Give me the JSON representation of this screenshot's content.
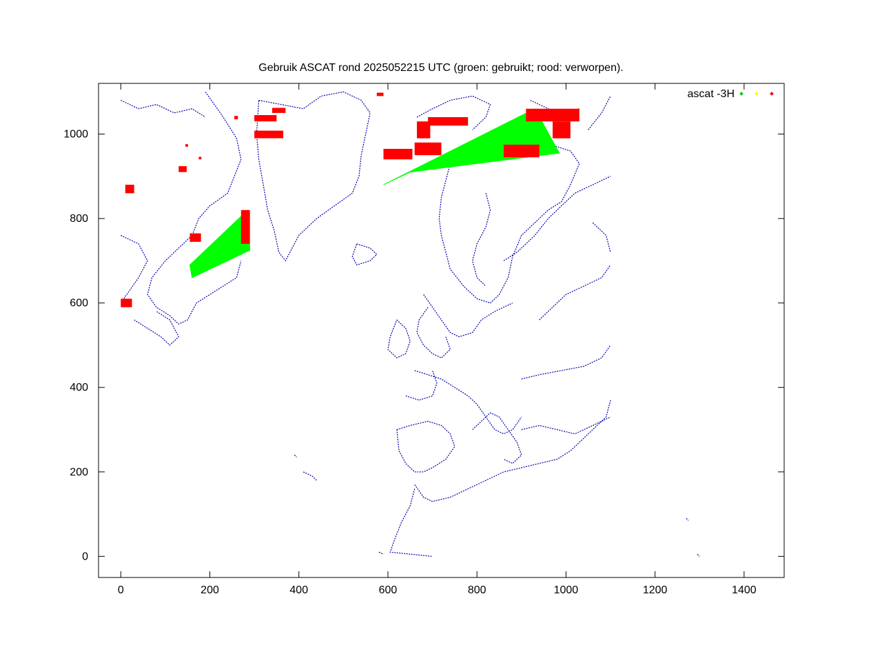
{
  "chart_data": {
    "type": "scatter",
    "title": "Gebruik ASCAT rond 2025052215 UTC (groen: gebruikt; rood: verworpen).",
    "xlabel": "",
    "ylabel": "",
    "xlim": [
      -50,
      1490
    ],
    "ylim": [
      -50,
      1120
    ],
    "x_ticks": [
      0,
      200,
      400,
      600,
      800,
      1000,
      1200,
      1400
    ],
    "y_ticks": [
      0,
      200,
      400,
      600,
      800,
      1000
    ],
    "grid": false,
    "legend": {
      "placement": "top-right",
      "title": "ascat -3H",
      "entries": [
        {
          "color": "#00cc00"
        },
        {
          "color": "#ffff00"
        },
        {
          "color": "#ff0000"
        }
      ]
    },
    "colors": {
      "used": "#00ff00",
      "rejected": "#ff0000",
      "coast": "#0000aa",
      "frame": "#000000"
    },
    "series": [
      {
        "status": "used",
        "color": "#00ff00",
        "swaths": [
          {
            "polygon": [
              [
                155,
                690
              ],
              [
                285,
                820
              ],
              [
                290,
                725
              ],
              [
                160,
                660
              ]
            ]
          },
          {
            "polygon": [
              [
                590,
                880
              ],
              [
                930,
                1060
              ],
              [
                985,
                955
              ],
              [
                650,
                910
              ]
            ]
          }
        ]
      },
      {
        "status": "rejected",
        "color": "#ff0000",
        "clusters": [
          {
            "x": 300,
            "y": 1030,
            "w": 50,
            "h": 15
          },
          {
            "x": 340,
            "y": 1050,
            "w": 30,
            "h": 12
          },
          {
            "x": 300,
            "y": 990,
            "w": 65,
            "h": 18
          },
          {
            "x": 255,
            "y": 1035,
            "w": 8,
            "h": 8
          },
          {
            "x": 130,
            "y": 910,
            "w": 18,
            "h": 14
          },
          {
            "x": 145,
            "y": 970,
            "w": 6,
            "h": 6
          },
          {
            "x": 175,
            "y": 940,
            "w": 6,
            "h": 6
          },
          {
            "x": 10,
            "y": 860,
            "w": 20,
            "h": 20
          },
          {
            "x": 0,
            "y": 590,
            "w": 25,
            "h": 20
          },
          {
            "x": 155,
            "y": 745,
            "w": 25,
            "h": 20
          },
          {
            "x": 270,
            "y": 740,
            "w": 20,
            "h": 80
          },
          {
            "x": 590,
            "y": 940,
            "w": 65,
            "h": 25
          },
          {
            "x": 665,
            "y": 990,
            "w": 30,
            "h": 40
          },
          {
            "x": 690,
            "y": 1020,
            "w": 90,
            "h": 20
          },
          {
            "x": 660,
            "y": 950,
            "w": 60,
            "h": 30
          },
          {
            "x": 860,
            "y": 945,
            "w": 80,
            "h": 30
          },
          {
            "x": 910,
            "y": 1030,
            "w": 120,
            "h": 30
          },
          {
            "x": 970,
            "y": 990,
            "w": 40,
            "h": 40
          },
          {
            "x": 575,
            "y": 1090,
            "w": 15,
            "h": 8
          }
        ]
      }
    ],
    "coastlines": [
      [
        [
          190,
          1100
        ],
        [
          210,
          1070
        ],
        [
          230,
          1040
        ],
        [
          260,
          990
        ],
        [
          270,
          940
        ],
        [
          255,
          900
        ],
        [
          240,
          860
        ],
        [
          200,
          830
        ],
        [
          175,
          800
        ],
        [
          160,
          760
        ],
        [
          130,
          730
        ],
        [
          100,
          700
        ],
        [
          70,
          660
        ],
        [
          60,
          620
        ],
        [
          80,
          590
        ],
        [
          110,
          570
        ],
        [
          130,
          550
        ],
        [
          150,
          560
        ],
        [
          170,
          600
        ],
        [
          200,
          620
        ],
        [
          230,
          640
        ],
        [
          260,
          660
        ],
        [
          270,
          700
        ]
      ],
      [
        [
          0,
          1080
        ],
        [
          40,
          1060
        ],
        [
          80,
          1070
        ],
        [
          120,
          1050
        ],
        [
          160,
          1060
        ],
        [
          190,
          1040
        ]
      ],
      [
        [
          0,
          760
        ],
        [
          40,
          740
        ],
        [
          60,
          700
        ],
        [
          40,
          660
        ],
        [
          20,
          630
        ],
        [
          0,
          600
        ]
      ],
      [
        [
          30,
          560
        ],
        [
          60,
          540
        ],
        [
          90,
          520
        ],
        [
          110,
          500
        ],
        [
          130,
          520
        ],
        [
          110,
          560
        ],
        [
          80,
          580
        ]
      ],
      [
        [
          310,
          1080
        ],
        [
          360,
          1070
        ],
        [
          410,
          1060
        ],
        [
          450,
          1090
        ],
        [
          500,
          1100
        ],
        [
          540,
          1080
        ],
        [
          560,
          1050
        ],
        [
          550,
          1000
        ],
        [
          540,
          950
        ],
        [
          535,
          900
        ],
        [
          520,
          860
        ],
        [
          480,
          830
        ],
        [
          440,
          800
        ],
        [
          400,
          760
        ],
        [
          380,
          720
        ],
        [
          370,
          700
        ],
        [
          355,
          720
        ],
        [
          345,
          770
        ],
        [
          330,
          820
        ],
        [
          320,
          880
        ],
        [
          310,
          940
        ],
        [
          305,
          1000
        ],
        [
          310,
          1080
        ]
      ],
      [
        [
          530,
          740
        ],
        [
          560,
          730
        ],
        [
          575,
          715
        ],
        [
          560,
          700
        ],
        [
          530,
          690
        ],
        [
          520,
          710
        ],
        [
          530,
          740
        ]
      ],
      [
        [
          665,
          1040
        ],
        [
          700,
          1060
        ],
        [
          740,
          1080
        ],
        [
          790,
          1090
        ],
        [
          830,
          1070
        ],
        [
          820,
          1040
        ],
        [
          790,
          1010
        ]
      ],
      [
        [
          740,
          930
        ],
        [
          790,
          940
        ],
        [
          830,
          950
        ],
        [
          880,
          970
        ],
        [
          930,
          980
        ],
        [
          980,
          970
        ],
        [
          1010,
          960
        ],
        [
          1030,
          930
        ],
        [
          1010,
          880
        ],
        [
          990,
          840
        ],
        [
          960,
          820
        ],
        [
          930,
          790
        ],
        [
          900,
          760
        ],
        [
          880,
          710
        ],
        [
          870,
          660
        ],
        [
          850,
          620
        ],
        [
          830,
          600
        ],
        [
          800,
          610
        ],
        [
          770,
          640
        ],
        [
          740,
          680
        ],
        [
          730,
          720
        ],
        [
          720,
          760
        ],
        [
          715,
          800
        ],
        [
          720,
          850
        ],
        [
          730,
          890
        ],
        [
          740,
          930
        ]
      ],
      [
        [
          860,
          700
        ],
        [
          890,
          720
        ],
        [
          930,
          760
        ],
        [
          960,
          800
        ],
        [
          990,
          830
        ],
        [
          1020,
          860
        ],
        [
          1060,
          880
        ],
        [
          1100,
          900
        ]
      ],
      [
        [
          820,
          860
        ],
        [
          830,
          820
        ],
        [
          820,
          780
        ],
        [
          800,
          740
        ],
        [
          790,
          700
        ],
        [
          800,
          660
        ],
        [
          820,
          640
        ]
      ],
      [
        [
          680,
          620
        ],
        [
          700,
          590
        ],
        [
          720,
          560
        ],
        [
          740,
          530
        ],
        [
          760,
          520
        ],
        [
          790,
          530
        ],
        [
          810,
          560
        ],
        [
          840,
          580
        ],
        [
          880,
          600
        ]
      ],
      [
        [
          690,
          590
        ],
        [
          670,
          560
        ],
        [
          665,
          530
        ],
        [
          680,
          500
        ],
        [
          700,
          480
        ],
        [
          720,
          470
        ],
        [
          740,
          490
        ],
        [
          730,
          520
        ]
      ],
      [
        [
          620,
          560
        ],
        [
          640,
          540
        ],
        [
          650,
          510
        ],
        [
          640,
          480
        ],
        [
          620,
          470
        ],
        [
          600,
          490
        ],
        [
          605,
          520
        ],
        [
          620,
          560
        ]
      ],
      [
        [
          660,
          440
        ],
        [
          690,
          430
        ],
        [
          720,
          420
        ],
        [
          750,
          400
        ],
        [
          780,
          380
        ],
        [
          800,
          360
        ],
        [
          820,
          330
        ],
        [
          840,
          300
        ],
        [
          860,
          290
        ],
        [
          880,
          300
        ],
        [
          900,
          330
        ]
      ],
      [
        [
          640,
          380
        ],
        [
          670,
          370
        ],
        [
          700,
          380
        ],
        [
          710,
          410
        ],
        [
          700,
          440
        ]
      ],
      [
        [
          620,
          300
        ],
        [
          650,
          310
        ],
        [
          690,
          320
        ],
        [
          720,
          310
        ],
        [
          740,
          290
        ],
        [
          750,
          260
        ],
        [
          730,
          230
        ],
        [
          700,
          210
        ],
        [
          680,
          200
        ],
        [
          660,
          200
        ],
        [
          640,
          220
        ],
        [
          625,
          250
        ],
        [
          620,
          300
        ]
      ],
      [
        [
          660,
          170
        ],
        [
          680,
          140
        ],
        [
          700,
          130
        ],
        [
          740,
          140
        ],
        [
          780,
          160
        ],
        [
          820,
          180
        ],
        [
          860,
          200
        ],
        [
          900,
          210
        ],
        [
          940,
          220
        ],
        [
          980,
          230
        ],
        [
          1010,
          250
        ],
        [
          1030,
          270
        ],
        [
          1060,
          300
        ],
        [
          1090,
          330
        ],
        [
          1100,
          370
        ]
      ],
      [
        [
          660,
          160
        ],
        [
          650,
          120
        ],
        [
          630,
          80
        ],
        [
          615,
          40
        ],
        [
          605,
          10
        ],
        [
          700,
          0
        ]
      ],
      [
        [
          790,
          300
        ],
        [
          810,
          320
        ],
        [
          830,
          340
        ],
        [
          850,
          330
        ],
        [
          870,
          300
        ],
        [
          890,
          270
        ],
        [
          900,
          240
        ],
        [
          880,
          220
        ],
        [
          860,
          230
        ]
      ],
      [
        [
          900,
          300
        ],
        [
          940,
          310
        ],
        [
          980,
          300
        ],
        [
          1020,
          290
        ],
        [
          1060,
          310
        ],
        [
          1100,
          330
        ]
      ],
      [
        [
          900,
          420
        ],
        [
          940,
          430
        ],
        [
          990,
          440
        ],
        [
          1040,
          450
        ],
        [
          1080,
          470
        ],
        [
          1100,
          500
        ]
      ],
      [
        [
          940,
          560
        ],
        [
          970,
          590
        ],
        [
          1000,
          620
        ],
        [
          1040,
          640
        ],
        [
          1080,
          660
        ],
        [
          1100,
          690
        ]
      ],
      [
        [
          1060,
          790
        ],
        [
          1090,
          760
        ],
        [
          1100,
          720
        ]
      ],
      [
        [
          1050,
          1010
        ],
        [
          1080,
          1050
        ],
        [
          1100,
          1090
        ]
      ],
      [
        [
          920,
          1080
        ],
        [
          960,
          1060
        ],
        [
          1000,
          1050
        ],
        [
          1030,
          1060
        ]
      ],
      [
        [
          410,
          200
        ],
        [
          430,
          190
        ],
        [
          440,
          180
        ]
      ],
      [
        [
          580,
          10
        ],
        [
          590,
          5
        ]
      ],
      [
        [
          1270,
          90
        ],
        [
          1275,
          85
        ]
      ],
      [
        [
          1295,
          5
        ],
        [
          1300,
          0
        ]
      ],
      [
        [
          390,
          240
        ],
        [
          395,
          235
        ]
      ]
    ]
  }
}
